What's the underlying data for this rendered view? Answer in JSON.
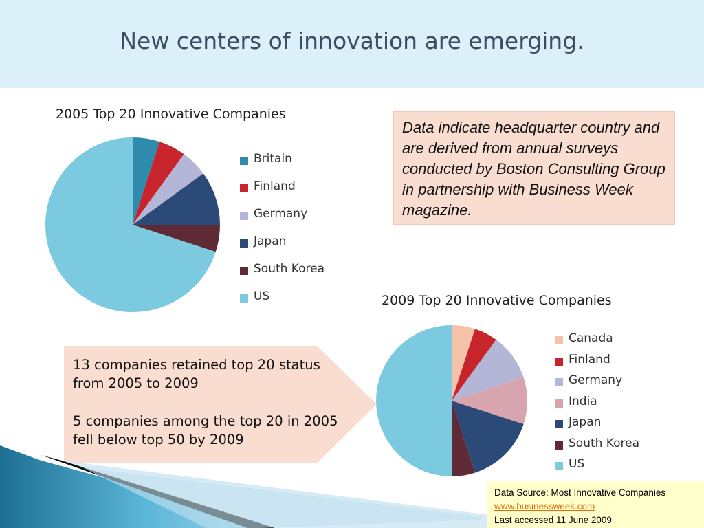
{
  "slide": {
    "title": "New centers of innovation are emerging.",
    "note": "Data indicate headquarter country and are derived from annual surveys conducted by Boston Consulting Group in partnership with Business Week magazine.",
    "callout": [
      "13 companies retained top 20 status from 2005 to 2009",
      "5 companies among the top 20 in 2005 fell below top 50 by 2009"
    ],
    "source": {
      "line1": "Data Source:  Most Innovative Companies",
      "link": "www.businessweek.com",
      "line3": "Last accessed 11 June 2009"
    }
  },
  "chart_data": [
    {
      "type": "pie",
      "title": "2005 Top 20 Innovative Companies",
      "categories": [
        "Britain",
        "Finland",
        "Germany",
        "Japan",
        "South Korea",
        "US"
      ],
      "values": [
        1,
        1,
        1,
        2,
        1,
        14
      ],
      "colors": [
        "#2e8bab",
        "#c8242c",
        "#b3b6d6",
        "#2c4a78",
        "#5e2a36",
        "#7ccae0"
      ],
      "legend_position": "right"
    },
    {
      "type": "pie",
      "title": "2009 Top 20 Innovative Companies",
      "categories": [
        "Canada",
        "Finland",
        "Germany",
        "India",
        "Japan",
        "South Korea",
        "US"
      ],
      "values": [
        1,
        1,
        2,
        2,
        3,
        1,
        10
      ],
      "colors": [
        "#f5c2a8",
        "#c8242c",
        "#b3b6d6",
        "#d8a4ad",
        "#2c4a78",
        "#5e2a36",
        "#7ccae0"
      ],
      "legend_position": "right"
    }
  ]
}
